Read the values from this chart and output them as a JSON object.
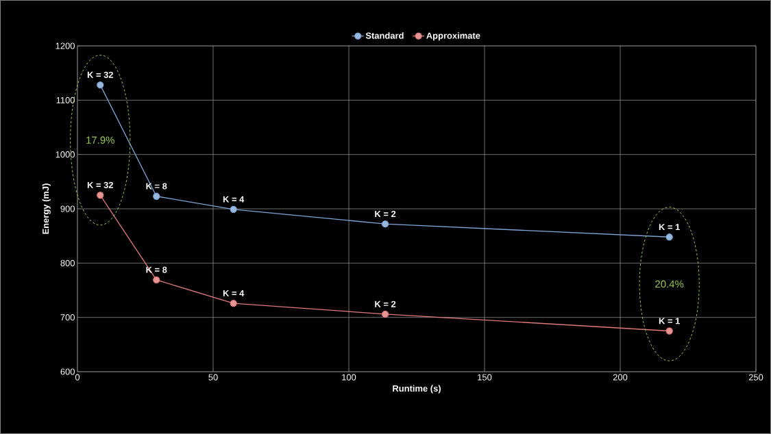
{
  "chart_data": {
    "type": "line",
    "xlabel": "Runtime (s)",
    "ylabel": "Energy (mJ)",
    "series": [
      {
        "name": "Standard",
        "color": "#7ea6d8",
        "x": [
          8.4,
          29.1,
          57.5,
          113.4,
          218.1
        ],
        "values": [
          1128,
          923,
          899,
          872,
          848
        ]
      },
      {
        "name": "Approximate",
        "color": "#e07a7a",
        "x": [
          8.4,
          29.1,
          57.5,
          113.4,
          218.1
        ],
        "values": [
          925,
          769,
          726,
          706,
          675
        ]
      }
    ],
    "annotations": [
      {
        "text": "K = 32",
        "x": 8.4,
        "y": 1128
      },
      {
        "text": "K = 8",
        "x": 29.1,
        "y": 923
      },
      {
        "text": "K = 4",
        "x": 57.5,
        "y": 899
      },
      {
        "text": "K = 2",
        "x": 113.4,
        "y": 872
      },
      {
        "text": "K = 1",
        "x": 218.1,
        "y": 848
      },
      {
        "text": "K = 32",
        "x": 8.4,
        "y": 925
      },
      {
        "text": "K = 8",
        "x": 29.1,
        "y": 769
      },
      {
        "text": "K = 4",
        "x": 57.5,
        "y": 726
      },
      {
        "text": "K = 2",
        "x": 113.4,
        "y": 706
      },
      {
        "text": "K = 1",
        "x": 218.1,
        "y": 675
      },
      "17.9%",
      "20.4%"
    ],
    "xlim": [
      0,
      250
    ],
    "ylim": [
      600,
      1200
    ],
    "xticks": [
      0,
      50,
      100,
      150,
      200,
      250
    ],
    "yticks": [
      600,
      700,
      800,
      900,
      1000,
      1100,
      1200
    ],
    "grid": true,
    "legend": "top",
    "marker": "circle",
    "line_style": "solid"
  }
}
